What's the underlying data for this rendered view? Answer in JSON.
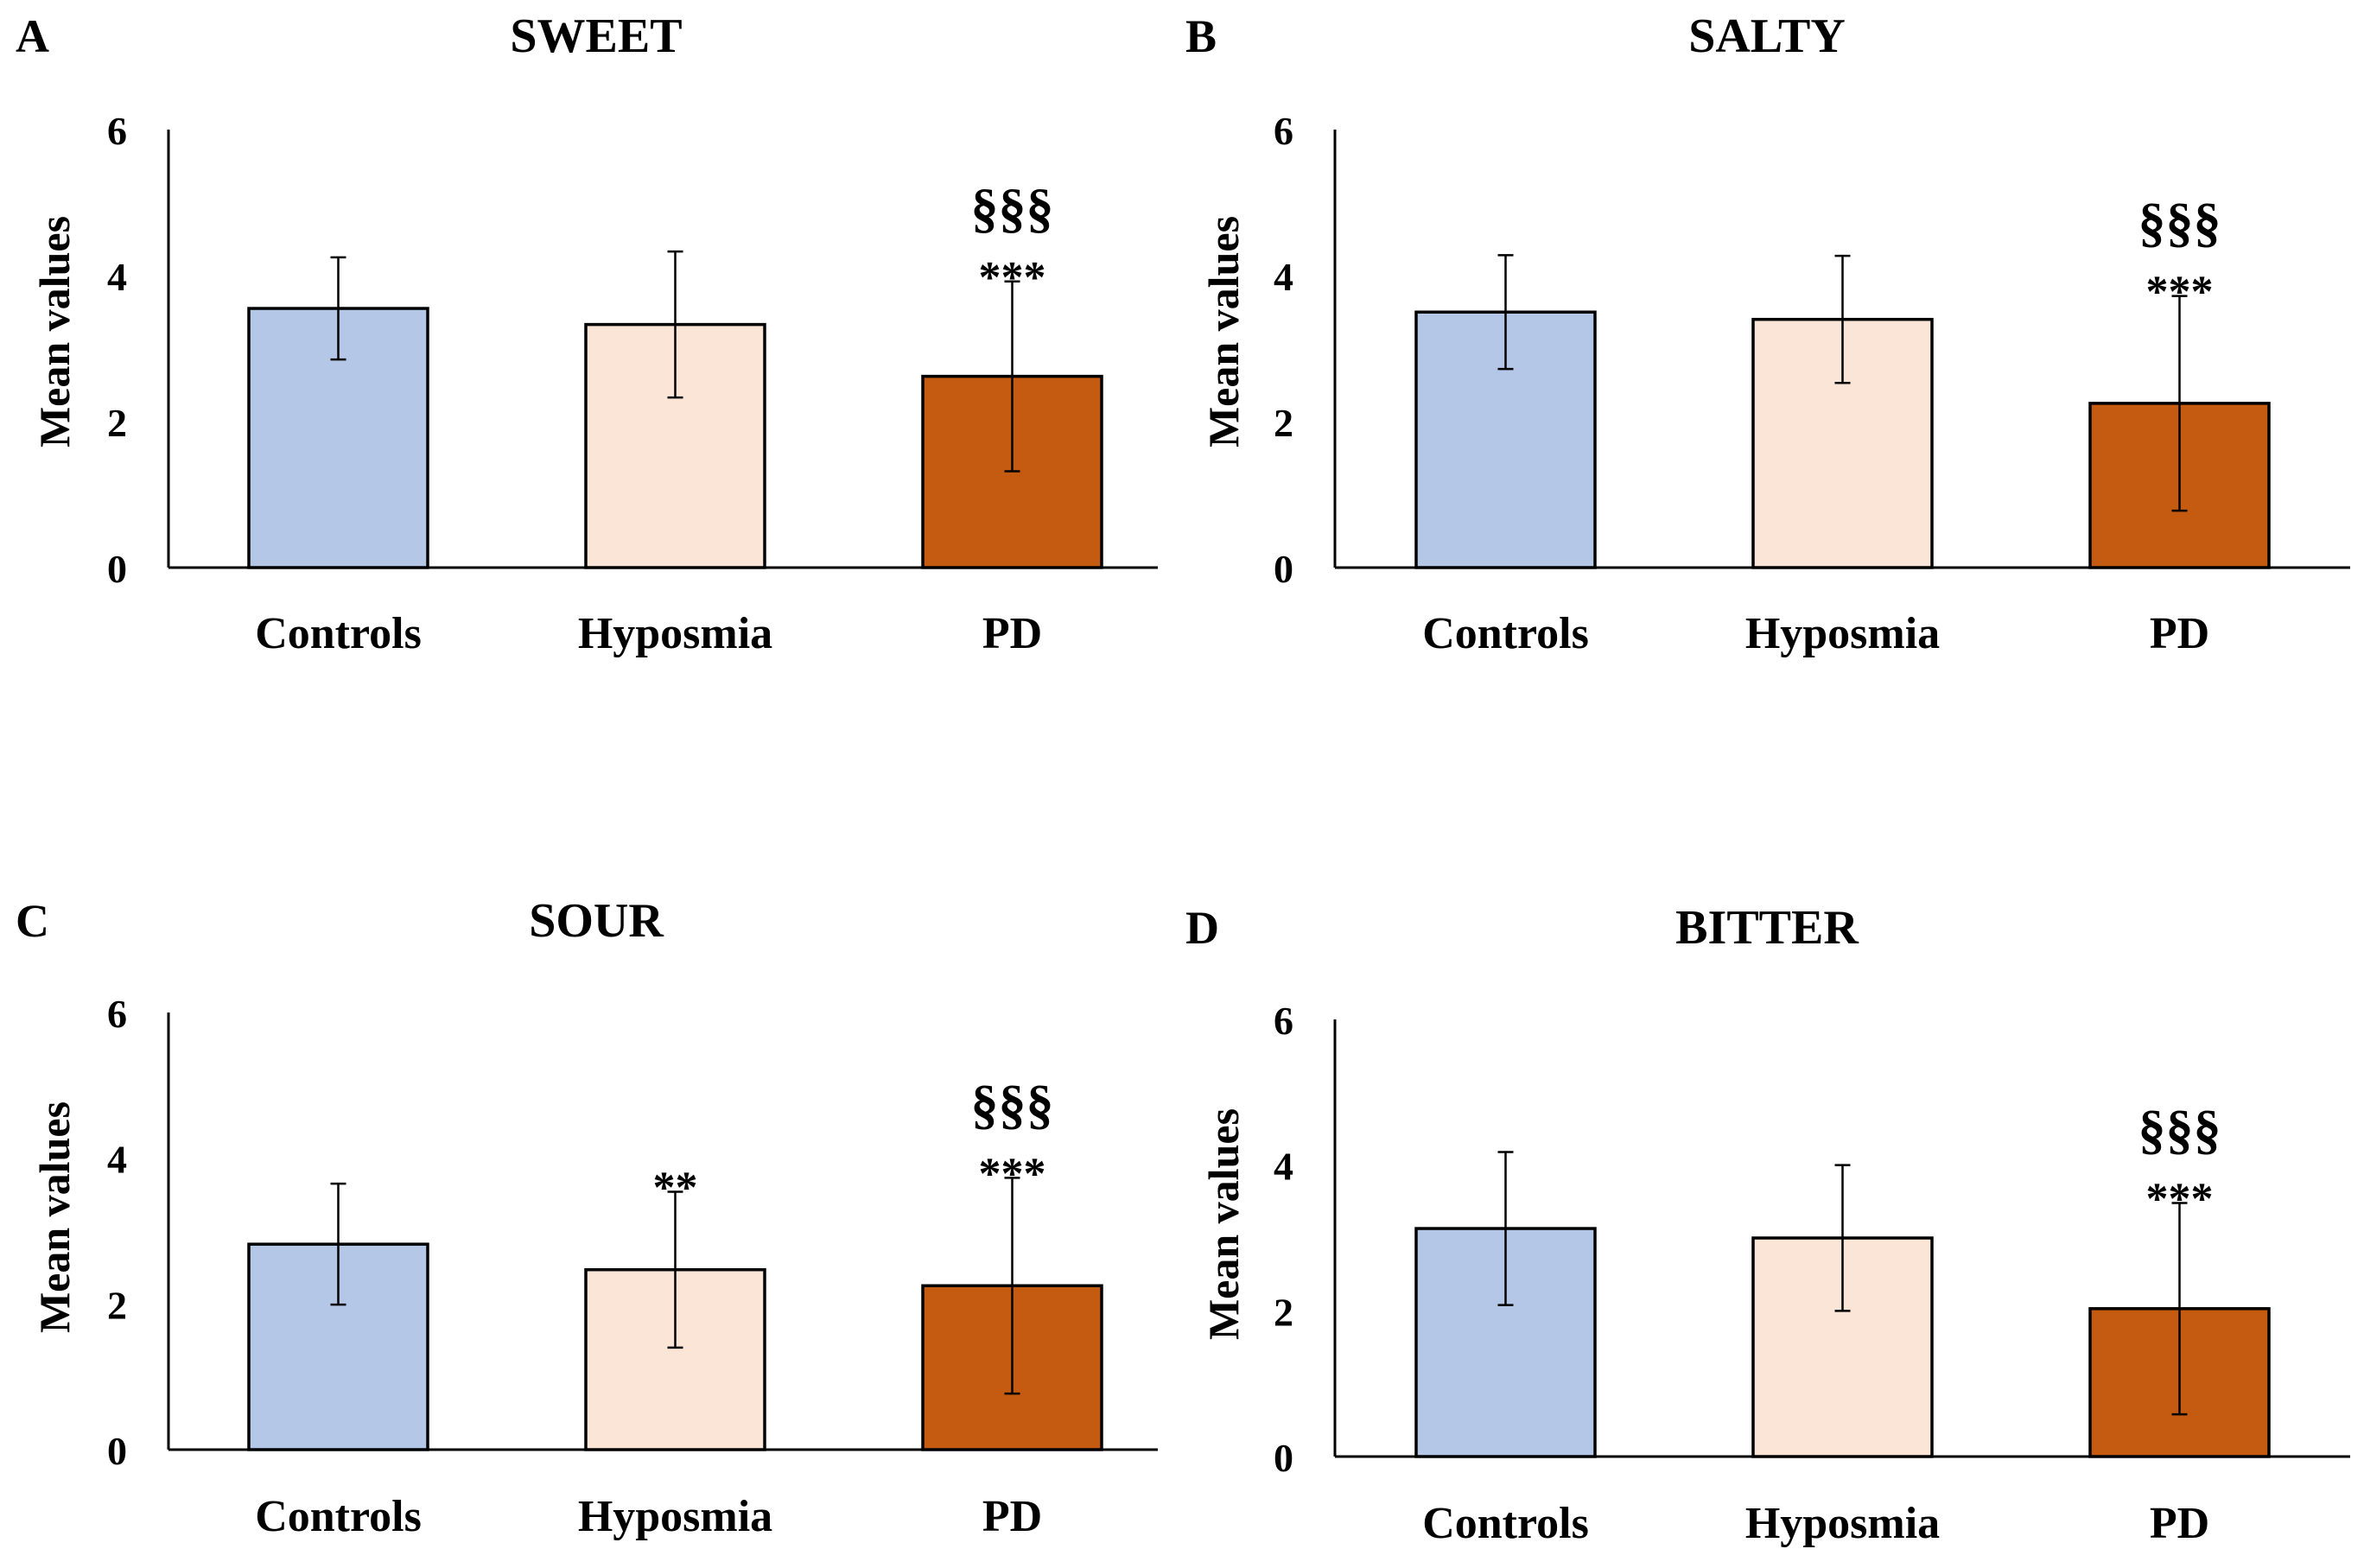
{
  "colors": {
    "Controls": "#b4c7e7",
    "Hyposmia": "#fbe5d6",
    "PD": "#c55a11",
    "stroke": "#000000"
  },
  "chart_data": [
    {
      "type": "bar",
      "panel_letter": "A",
      "title": "SWEET",
      "xlabel": "",
      "ylabel": "Mean values",
      "ylim": [
        0,
        6
      ],
      "yticks": [
        "0",
        "2",
        "4",
        "6"
      ],
      "grid": false,
      "categories": [
        "Controls",
        "Hyposmia",
        "PD"
      ],
      "values": [
        3.55,
        3.33,
        2.62
      ],
      "error": [
        0.7,
        1.0,
        1.3
      ],
      "annotations": [
        {
          "category": "PD",
          "lines": [
            "§§§",
            "***"
          ]
        }
      ]
    },
    {
      "type": "bar",
      "panel_letter": "B",
      "title": "SALTY",
      "xlabel": "",
      "ylabel": "Mean values",
      "ylim": [
        0,
        6
      ],
      "yticks": [
        "0",
        "2",
        "4",
        "6"
      ],
      "grid": false,
      "categories": [
        "Controls",
        "Hyposmia",
        "PD"
      ],
      "values": [
        3.5,
        3.4,
        2.25
      ],
      "error": [
        0.78,
        0.87,
        1.47
      ],
      "annotations": [
        {
          "category": "PD",
          "lines": [
            "§§§",
            "***"
          ]
        }
      ]
    },
    {
      "type": "bar",
      "panel_letter": "C",
      "title": "SOUR",
      "xlabel": "",
      "ylabel": "Mean values",
      "ylim": [
        0,
        6
      ],
      "yticks": [
        "0",
        "2",
        "4",
        "6"
      ],
      "grid": false,
      "categories": [
        "Controls",
        "Hyposmia",
        "PD"
      ],
      "values": [
        2.82,
        2.47,
        2.25
      ],
      "error": [
        0.83,
        1.07,
        1.48
      ],
      "annotations": [
        {
          "category": "Hyposmia",
          "lines": [
            "**"
          ]
        },
        {
          "category": "PD",
          "lines": [
            "§§§",
            "***"
          ]
        }
      ]
    },
    {
      "type": "bar",
      "panel_letter": "D",
      "title": "BITTER",
      "xlabel": "",
      "ylabel": "Mean values",
      "ylim": [
        0,
        6
      ],
      "yticks": [
        "0",
        "2",
        "4",
        "6"
      ],
      "grid": false,
      "categories": [
        "Controls",
        "Hyposmia",
        "PD"
      ],
      "values": [
        3.13,
        3.0,
        2.03
      ],
      "error": [
        1.05,
        1.0,
        1.45
      ],
      "annotations": [
        {
          "category": "PD",
          "lines": [
            "§§§",
            "***"
          ]
        }
      ]
    }
  ]
}
